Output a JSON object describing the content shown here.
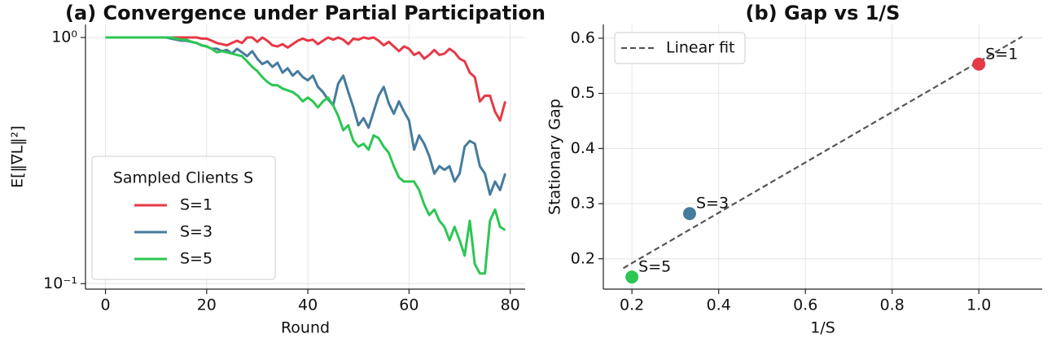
{
  "chart_data": [
    {
      "type": "line",
      "title": "(a) Convergence under Partial Participation",
      "xlabel": "Round",
      "ylabel": "E[‖∇L‖²]",
      "yscale": "log",
      "grid": true,
      "xlim": [
        -3.95,
        82.95
      ],
      "xticks": [
        0,
        20,
        40,
        60,
        80
      ],
      "ylim": [
        0.095,
        1.13
      ],
      "yticks": [
        {
          "value": 1,
          "label": "10⁰"
        },
        {
          "value": 0.1,
          "label": "10⁻¹"
        }
      ],
      "legend": {
        "title": "Sampled Clients S",
        "loc": "lower left"
      },
      "x": [
        0,
        1,
        2,
        3,
        4,
        5,
        6,
        7,
        8,
        9,
        10,
        11,
        12,
        13,
        14,
        15,
        16,
        17,
        18,
        19,
        20,
        21,
        22,
        23,
        24,
        25,
        26,
        27,
        28,
        29,
        30,
        31,
        32,
        33,
        34,
        35,
        36,
        37,
        38,
        39,
        40,
        41,
        42,
        43,
        44,
        45,
        46,
        47,
        48,
        49,
        50,
        51,
        52,
        53,
        54,
        55,
        56,
        57,
        58,
        59,
        60,
        61,
        62,
        63,
        64,
        65,
        66,
        67,
        68,
        69,
        70,
        71,
        72,
        73,
        74,
        75,
        76,
        77,
        78,
        79
      ],
      "series": [
        {
          "name": "S=1",
          "color": "#e63946",
          "values": [
            1,
            1,
            1,
            1,
            1,
            1,
            1,
            1,
            1,
            1,
            1,
            1,
            1,
            1,
            1,
            1,
            1,
            1,
            1,
            0.99,
            0.99,
            0.97,
            0.95,
            0.94,
            0.93,
            0.95,
            0.97,
            0.95,
            1.0,
            1.0,
            0.96,
            1.0,
            0.97,
            0.93,
            0.92,
            0.94,
            0.91,
            0.94,
            0.97,
            0.99,
            0.97,
            0.98,
            0.94,
            0.97,
            1.0,
            0.98,
            1.0,
            0.98,
            0.94,
            0.99,
            0.98,
            1.0,
            0.99,
            1.0,
            0.97,
            0.93,
            0.96,
            0.92,
            0.88,
            0.92,
            0.9,
            0.85,
            0.87,
            0.82,
            0.85,
            0.89,
            0.85,
            0.86,
            0.9,
            0.87,
            0.82,
            0.8,
            0.72,
            0.69,
            0.55,
            0.58,
            0.58,
            0.5,
            0.46,
            0.55
          ]
        },
        {
          "name": "S=3",
          "color": "#457b9d",
          "values": [
            1,
            1,
            1,
            1,
            1,
            1,
            1,
            1,
            1,
            1,
            1,
            1,
            1,
            0.99,
            0.98,
            0.97,
            0.97,
            0.96,
            0.95,
            0.93,
            0.92,
            0.9,
            0.9,
            0.88,
            0.89,
            0.86,
            0.9,
            0.87,
            0.84,
            0.88,
            0.82,
            0.78,
            0.8,
            0.76,
            0.79,
            0.72,
            0.75,
            0.7,
            0.73,
            0.69,
            0.67,
            0.7,
            0.63,
            0.6,
            0.56,
            0.53,
            0.65,
            0.7,
            0.6,
            0.52,
            0.44,
            0.47,
            0.43,
            0.5,
            0.58,
            0.63,
            0.54,
            0.49,
            0.55,
            0.5,
            0.46,
            0.35,
            0.4,
            0.37,
            0.33,
            0.28,
            0.3,
            0.29,
            0.3,
            0.26,
            0.28,
            0.36,
            0.38,
            0.37,
            0.3,
            0.28,
            0.23,
            0.26,
            0.24,
            0.28
          ]
        },
        {
          "name": "S=5",
          "color": "#2dc653",
          "values": [
            1,
            1,
            1,
            1,
            1,
            1,
            1,
            1,
            1,
            1,
            1,
            1,
            1,
            1,
            0.99,
            0.98,
            0.98,
            0.96,
            0.95,
            0.93,
            0.92,
            0.9,
            0.87,
            0.88,
            0.87,
            0.86,
            0.85,
            0.84,
            0.8,
            0.76,
            0.73,
            0.69,
            0.66,
            0.64,
            0.64,
            0.62,
            0.61,
            0.6,
            0.58,
            0.55,
            0.57,
            0.55,
            0.52,
            0.55,
            0.57,
            0.53,
            0.48,
            0.42,
            0.44,
            0.38,
            0.36,
            0.37,
            0.35,
            0.4,
            0.39,
            0.36,
            0.34,
            0.3,
            0.27,
            0.26,
            0.26,
            0.26,
            0.24,
            0.21,
            0.19,
            0.2,
            0.18,
            0.17,
            0.15,
            0.17,
            0.15,
            0.13,
            0.18,
            0.12,
            0.11,
            0.11,
            0.18,
            0.2,
            0.17,
            0.165
          ]
        }
      ]
    },
    {
      "type": "scatter",
      "title": "(b) Gap vs 1/S",
      "xlabel": "1/S",
      "ylabel": "Stationary Gap",
      "grid": true,
      "xlim": [
        0.134,
        1.146
      ],
      "xticks": [
        0.2,
        0.4,
        0.6,
        0.8,
        {
          "value": 1,
          "label": "1.0"
        }
      ],
      "ylim": [
        0.145,
        0.625
      ],
      "yticks": [
        0.2,
        0.3,
        0.4,
        0.5,
        0.6
      ],
      "legend": {
        "loc": "upper left"
      },
      "points": {
        "x": [
          1,
          0.333,
          0.2
        ],
        "values": [
          0.553,
          0.282,
          0.167
        ],
        "labels": [
          "S=1",
          "S=3",
          "S=5"
        ],
        "colors": [
          "#e63946",
          "#457b9d",
          "#2dc653"
        ]
      },
      "fit": {
        "name": "Linear fit",
        "color": "#555555",
        "x": [
          0.18,
          1.1
        ],
        "values": [
          0.183,
          0.603
        ]
      }
    }
  ]
}
